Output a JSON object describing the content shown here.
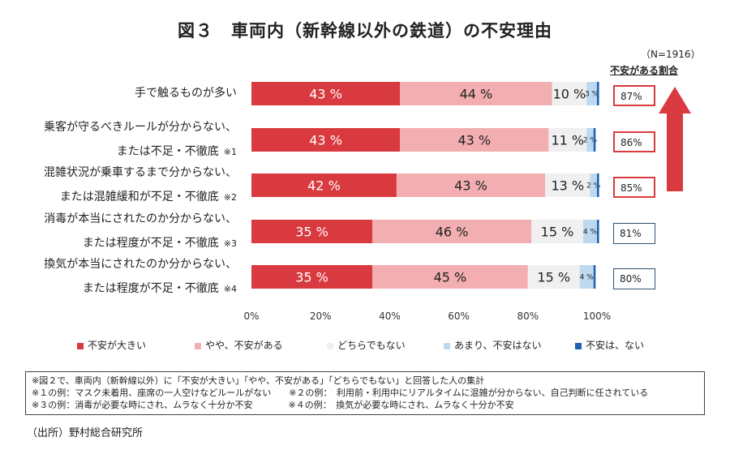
{
  "title": "図３　車両内（新幹線以外の鉄道）の不安理由",
  "sample_size": "（N=1916）",
  "rate_header": "不安がある割合",
  "colors": {
    "very_anxious": "#d93a3f",
    "somewhat_anxious": "#f2aeb0",
    "neutral": "#f0f0f0",
    "not_very": "#bcd9f0",
    "not_at_all": "#1f5fb8",
    "arrow": "#d93a3f"
  },
  "chart_data": {
    "type": "bar",
    "orientation": "horizontal-stacked-100",
    "categories": [
      {
        "line1": "手で触るものが多い",
        "line2": "",
        "note": ""
      },
      {
        "line1": "乗客が守るべきルールが分からない、",
        "line2": "または不足・不徹底",
        "note": "※1"
      },
      {
        "line1": "混雑状況が乗車するまで分からない、",
        "line2": "または混雑緩和が不足・不徹底",
        "note": "※2"
      },
      {
        "line1": "消毒が本当にされたのか分からない、",
        "line2": "または程度が不足・不徹底",
        "note": "※3"
      },
      {
        "line1": "換気が本当にされたのか分からない、",
        "line2": "または程度が不足・不徹底",
        "note": "※4"
      }
    ],
    "series": [
      {
        "name": "不安が大きい",
        "values": [
          43,
          43,
          42,
          35,
          35
        ],
        "labels": [
          "43 %",
          "43 %",
          "42 %",
          "35 %",
          "35 %"
        ]
      },
      {
        "name": "やや、不安がある",
        "values": [
          44,
          43,
          43,
          46,
          45
        ],
        "labels": [
          "44 %",
          "43 %",
          "43 %",
          "46 %",
          "45 %"
        ]
      },
      {
        "name": "どちらでもない",
        "values": [
          10,
          11,
          13,
          15,
          15
        ],
        "labels": [
          "10 %",
          "11 %",
          "13 %",
          "15 %",
          "15 %"
        ]
      },
      {
        "name": "あまり、不安はない",
        "values": [
          3,
          2,
          2,
          4,
          4
        ],
        "labels": [
          "3 %",
          "2 %",
          "2 %",
          "4 %",
          "4 %"
        ]
      },
      {
        "name": "不安は、ない",
        "values": [
          0.6,
          0.6,
          0.6,
          0.6,
          0.6
        ],
        "labels": [
          "",
          "",
          "",
          "",
          ""
        ]
      }
    ],
    "anxiety_rates": [
      "87%",
      "86%",
      "85%",
      "81%",
      "80%"
    ],
    "highlighted_rates": [
      true,
      true,
      true,
      false,
      false
    ],
    "xlim": [
      0,
      100
    ],
    "x_ticks": [
      "0%",
      "20%",
      "40%",
      "60%",
      "80%",
      "100%"
    ],
    "legend_position": "bottom"
  },
  "notes": [
    "※図２で、車両内（新幹線以外）に「不安が大きい」「やや、不安がある」「どちらでもない」と回答した人の集計",
    "※１の例：マスク未着用、座席の一人空けなどルールがない　　※２の例：　利用前・利用中にリアルタイムに混雑が分からない、自己判断に任されている",
    "※３の例：消毒が必要な時にされ、ムラなく十分か不安　　　　※４の例：　換気が必要な時にされ、ムラなく十分か不安"
  ],
  "source": "（出所）野村総合研究所"
}
